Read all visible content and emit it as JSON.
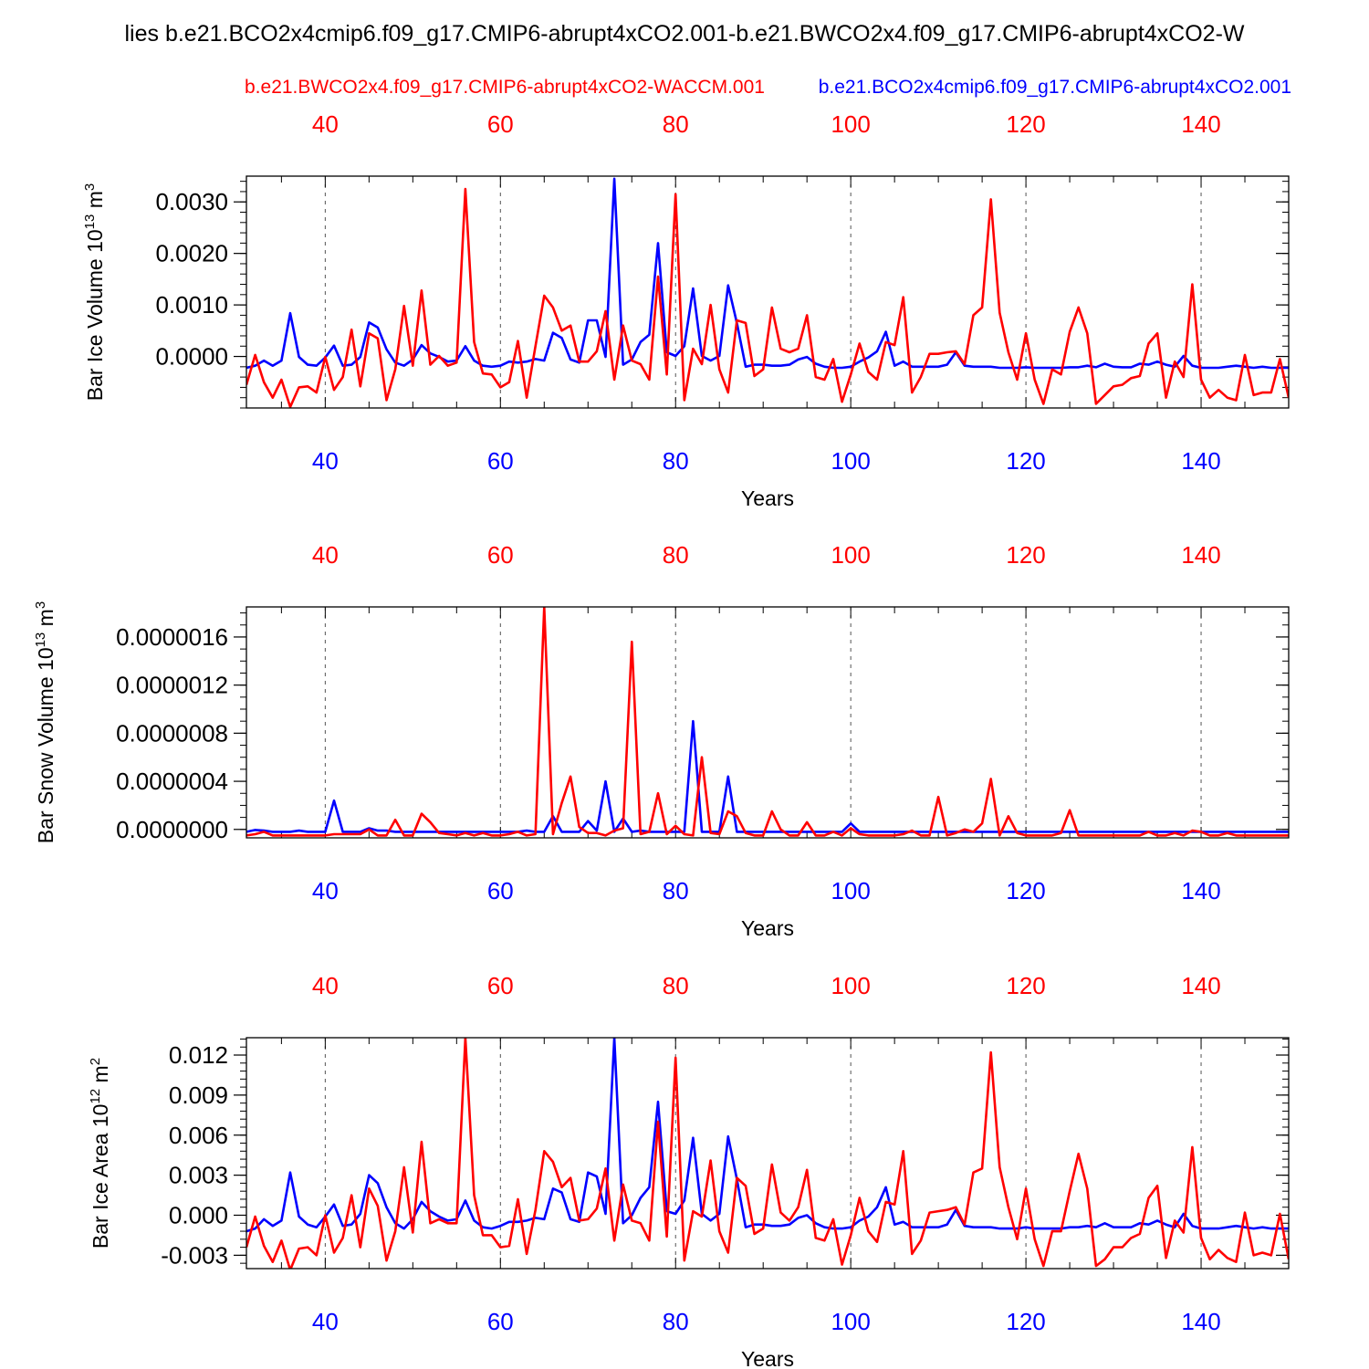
{
  "title": "lies b.e21.BCO2x4cmip6.f09_g17.CMIP6-abrupt4xCO2.001-b.e21.BWCO2x4.f09_g17.CMIP6-abrupt4xCO2-W",
  "legend": {
    "red_label": "b.e21.BWCO2x4.f09_g17.CMIP6-abrupt4xCO2-WACCM.001",
    "blue_label": "b.e21.BCO2x4cmip6.f09_g17.CMIP6-abrupt4xCO2.001"
  },
  "colors": {
    "red": "#ff0000",
    "blue": "#0000ff",
    "axis": "#000000",
    "grid": "#555555"
  },
  "chart_data": [
    {
      "type": "line",
      "ylabel": "Bar Ice Volume 10^13 m^3",
      "xlabel": "Years",
      "xlim": [
        31,
        150
      ],
      "ylim": [
        -0.001,
        0.0035
      ],
      "yticks": [
        0.0,
        0.001,
        0.002,
        0.003
      ],
      "ytick_labels": [
        "0.0000",
        "0.0010",
        "0.0020",
        "0.0030"
      ],
      "minor_step": 0.0002,
      "xticks": [
        40,
        60,
        80,
        100,
        120,
        140
      ],
      "xtick_labels": [
        "40",
        "60",
        "80",
        "100",
        "120",
        "140"
      ],
      "grid": "x dashed",
      "series": [
        {
          "name": "b.e21.BCO2x4cmip6.f09_g17.CMIP6-abrupt4xCO2.001",
          "color": "blue",
          "x_start": 31,
          "values": [
            -0.00022,
            -0.00018,
            -8e-05,
            -0.00018,
            -8e-05,
            0.00084,
            -1e-05,
            -0.00016,
            -0.00018,
            -2e-05,
            0.00021,
            -0.00018,
            -0.00016,
            -1e-05,
            0.00066,
            0.00056,
            0.00014,
            -0.00012,
            -0.00018,
            -6e-05,
            0.00022,
            6e-05,
            -1e-05,
            -0.0001,
            -8e-05,
            0.0002,
            -8e-05,
            -0.00018,
            -0.0002,
            -0.00018,
            -0.0001,
            -0.00012,
            -0.0001,
            -5e-05,
            -8e-05,
            0.00046,
            0.00036,
            -6e-05,
            -0.00012,
            0.0007,
            0.0007,
            -1e-05,
            0.00345,
            -0.00016,
            -6e-05,
            0.00028,
            0.00042,
            0.0022,
            8e-05,
            1e-05,
            0.0002,
            0.00132,
            1e-05,
            -8e-05,
            1e-05,
            0.00138,
            0.00065,
            -0.0002,
            -0.00016,
            -0.00016,
            -0.00018,
            -0.00018,
            -0.00016,
            -6e-05,
            -1e-05,
            -0.00014,
            -0.0002,
            -0.00022,
            -0.00022,
            -0.0002,
            -0.0001,
            -2e-05,
            0.0001,
            0.00048,
            -0.00018,
            -0.0001,
            -0.0002,
            -0.0002,
            -0.0002,
            -0.0002,
            -0.00016,
            8e-05,
            -0.00018,
            -0.0002,
            -0.0002,
            -0.0002,
            -0.00022,
            -0.00022,
            -0.00022,
            -0.00021,
            -0.00022,
            -0.00022,
            -0.00022,
            -0.00022,
            -0.00021,
            -0.00021,
            -0.00018,
            -0.00021,
            -0.00014,
            -0.0002,
            -0.00021,
            -0.00021,
            -0.00014,
            -0.00016,
            -0.0001,
            -0.00016,
            -0.0002,
            1e-05,
            -0.00018,
            -0.00022,
            -0.00022,
            -0.00022,
            -0.0002,
            -0.00018,
            -0.0002,
            -0.00022,
            -0.0002,
            -0.00022,
            -0.00022,
            -0.00022
          ]
        },
        {
          "name": "b.e21.BWCO2x4.f09_g17.CMIP6-abrupt4xCO2-WACCM.001",
          "color": "red",
          "x_start": 31,
          "values": [
            -0.00055,
            3e-05,
            -0.0005,
            -0.0008,
            -0.00045,
            -0.00098,
            -0.0006,
            -0.00058,
            -0.0007,
            -1e-05,
            -0.00065,
            -0.0004,
            0.00052,
            -0.00058,
            0.00045,
            0.00035,
            -0.00085,
            -0.00025,
            0.00098,
            -0.00018,
            0.00128,
            -0.00016,
            1e-05,
            -0.00018,
            -0.00012,
            0.00325,
            0.00028,
            -0.00033,
            -0.00035,
            -0.0006,
            -0.0005,
            0.0003,
            -0.0008,
            0.0002,
            0.00118,
            0.00095,
            0.0005,
            0.0006,
            -0.0001,
            -0.0001,
            0.0001,
            0.00088,
            -0.00045,
            0.0006,
            -8e-05,
            -0.00015,
            -0.00045,
            0.00155,
            -0.00035,
            0.00315,
            -0.00085,
            0.00015,
            -0.00015,
            0.001,
            -0.00025,
            -0.0007,
            0.0007,
            0.00065,
            -0.00038,
            -0.00025,
            0.00095,
            0.00015,
            8e-05,
            0.00015,
            0.0008,
            -0.0004,
            -0.00045,
            -5e-05,
            -0.00088,
            -0.00035,
            0.00025,
            -0.0003,
            -0.00045,
            0.00028,
            0.00022,
            0.00115,
            -0.0007,
            -0.0004,
            5e-05,
            5e-05,
            8e-05,
            0.0001,
            -0.00015,
            0.0008,
            0.00095,
            0.00305,
            0.00085,
            8e-05,
            -0.00045,
            0.00045,
            -0.00045,
            -0.00092,
            -0.00025,
            -0.00035,
            0.00048,
            0.00095,
            0.00045,
            -0.00092,
            -0.00075,
            -0.00058,
            -0.00055,
            -0.00042,
            -0.00038,
            0.00025,
            0.00045,
            -0.0008,
            -0.0001,
            -0.0004,
            0.0014,
            -0.00045,
            -0.0008,
            -0.00065,
            -0.0008,
            -0.00085,
            3e-05,
            -0.00075,
            -0.0007,
            -0.0007,
            -5e-05,
            -0.0008
          ]
        }
      ]
    },
    {
      "type": "line",
      "ylabel": "Bar Snow Volume 10^13 m^3",
      "xlabel": "Years",
      "xlim": [
        31,
        150
      ],
      "ylim": [
        -7e-08,
        1.85e-06
      ],
      "yticks": [
        0.0,
        4e-07,
        8e-07,
        1.2e-06,
        1.6e-06
      ],
      "ytick_labels": [
        "0.0000000",
        "0.0000004",
        "0.0000008",
        "0.0000012",
        "0.0000016"
      ],
      "minor_step": 1e-07,
      "xticks": [
        40,
        60,
        80,
        100,
        120,
        140
      ],
      "xtick_labels": [
        "40",
        "60",
        "80",
        "100",
        "120",
        "140"
      ],
      "grid": "x dashed",
      "series": [
        {
          "name": "b.e21.BCO2x4cmip6.f09_g17.CMIP6-abrupt4xCO2.001",
          "color": "blue",
          "x_start": 31,
          "values": [
            -2e-08,
            -5e-09,
            -1e-08,
            -2e-08,
            -2e-08,
            -2e-08,
            -1e-08,
            -2e-08,
            -2e-08,
            -2e-08,
            2.4e-07,
            -2e-08,
            -2e-08,
            -2e-08,
            1e-08,
            -1e-08,
            -1e-08,
            -2e-08,
            -2e-08,
            -2e-08,
            -2e-08,
            -2e-08,
            -2e-08,
            -2e-08,
            -2e-08,
            -2e-08,
            -2e-08,
            -2e-08,
            -2e-08,
            -2e-08,
            -2e-08,
            -2e-08,
            -1e-08,
            -2e-08,
            -2e-08,
            1.1e-07,
            -2e-08,
            -2e-08,
            -2e-08,
            7e-08,
            -1e-08,
            4e-07,
            -2e-08,
            9e-08,
            -2e-08,
            -1e-08,
            -2e-08,
            -2e-08,
            -2e-08,
            -2e-08,
            -2e-08,
            9e-07,
            -2e-08,
            -2e-08,
            -2e-08,
            4.4e-07,
            -2e-08,
            -2e-08,
            -2e-08,
            -2e-08,
            -2e-08,
            -2e-08,
            -2e-08,
            -2e-08,
            -2e-08,
            -2e-08,
            -2e-08,
            -2e-08,
            -2e-08,
            5e-08,
            -2e-08,
            -2e-08,
            -2e-08,
            -2e-08,
            -2e-08,
            -2e-08,
            -2e-08,
            -2e-08,
            -2e-08,
            -2e-08,
            -2e-08,
            -2e-08,
            -2e-08,
            -2e-08,
            -2e-08,
            -2e-08,
            -2e-08,
            -2e-08,
            -2e-08,
            -2e-08,
            -2e-08,
            -2e-08,
            -2e-08,
            -2e-08,
            -2e-08,
            -2e-08,
            -2e-08,
            -2e-08,
            -2e-08,
            -2e-08,
            -2e-08,
            -2e-08,
            -2e-08,
            -2e-08,
            -2e-08,
            -2e-08,
            -2e-08,
            -2e-08,
            -2e-08,
            -2e-08,
            -2e-08,
            -2e-08,
            -2e-08,
            -2e-08,
            -2e-08,
            -2e-08,
            -2e-08,
            -2e-08,
            -2e-08,
            -2e-08
          ]
        },
        {
          "name": "b.e21.BWCO2x4.f09_g17.CMIP6-abrupt4xCO2-WACCM.001",
          "color": "red",
          "x_start": 31,
          "values": [
            -5e-08,
            -4e-08,
            -2e-08,
            -5e-08,
            -5e-08,
            -5e-08,
            -5e-08,
            -5e-08,
            -5e-08,
            -5e-08,
            -4e-08,
            -4e-08,
            -4e-08,
            -4e-08,
            0.0,
            -5e-08,
            -5e-08,
            8e-08,
            -5e-08,
            -5e-08,
            1.3e-07,
            6e-08,
            -3e-08,
            -4e-08,
            -5e-08,
            -3e-08,
            -5e-08,
            -3e-08,
            -5e-08,
            -5e-08,
            -4e-08,
            -2e-08,
            -5e-08,
            -4e-08,
            1.85e-06,
            -4e-08,
            2.2e-07,
            4.4e-07,
            2e-08,
            -3e-08,
            -3e-08,
            -5e-08,
            -1e-08,
            1e-08,
            1.56e-06,
            -4e-08,
            -2e-08,
            3e-07,
            -4e-08,
            3e-08,
            -4e-08,
            -5e-08,
            6e-07,
            -3e-08,
            -4e-08,
            1.5e-07,
            1.1e-07,
            -3e-08,
            -5e-08,
            -5e-08,
            1.5e-07,
            0.0,
            -5e-08,
            -5e-08,
            6e-08,
            -5e-08,
            -5e-08,
            -2e-08,
            -5e-08,
            1e-08,
            -4e-08,
            -5e-08,
            -5e-08,
            -5e-08,
            -5e-08,
            -4e-08,
            -1e-08,
            -5e-08,
            -5e-08,
            2.7e-07,
            -5e-08,
            -3e-08,
            0.0,
            -2e-08,
            5e-08,
            4.2e-07,
            -5e-08,
            1.1e-07,
            -3e-08,
            -5e-08,
            -5e-08,
            -5e-08,
            -5e-08,
            -3e-08,
            1.6e-07,
            -5e-08,
            -5e-08,
            -5e-08,
            -5e-08,
            -5e-08,
            -5e-08,
            -5e-08,
            -5e-08,
            -2e-08,
            -5e-08,
            -5e-08,
            -3e-08,
            -5e-08,
            -1e-08,
            -2e-08,
            -5e-08,
            -5e-08,
            -3e-08,
            -5e-08,
            -5e-08,
            -5e-08,
            -5e-08,
            -5e-08,
            -5e-08,
            -5e-08
          ]
        }
      ]
    },
    {
      "type": "line",
      "ylabel": "Bar Ice Area 10^12 m^2",
      "xlabel": "Years",
      "xlim": [
        31,
        150
      ],
      "ylim": [
        -0.004,
        0.0133
      ],
      "yticks": [
        -0.003,
        0.0,
        0.003,
        0.006,
        0.009,
        0.012
      ],
      "ytick_labels": [
        "-0.003",
        "0.000",
        "0.003",
        "0.006",
        "0.009",
        "0.012"
      ],
      "minor_step": 0.0006,
      "xticks": [
        40,
        60,
        80,
        100,
        120,
        140
      ],
      "xtick_labels": [
        "40",
        "60",
        "80",
        "100",
        "120",
        "140"
      ],
      "grid": "x dashed",
      "series": [
        {
          "name": "b.e21.BCO2x4cmip6.f09_g17.CMIP6-abrupt4xCO2.001",
          "color": "blue",
          "x_start": 31,
          "values": [
            -0.0012,
            -0.001,
            -0.0003,
            -0.0008,
            -0.0004,
            0.0032,
            -0.0001,
            -0.0007,
            -0.0009,
            -0.0001,
            0.0008,
            -0.0008,
            -0.0007,
            0.0001,
            0.003,
            0.0024,
            0.0006,
            -0.0006,
            -0.001,
            -0.0003,
            0.001,
            0.0003,
            -0.0001,
            -0.0004,
            -0.0003,
            0.0011,
            -0.0004,
            -0.0009,
            -0.001,
            -0.0008,
            -0.0005,
            -0.0005,
            -0.0004,
            -0.0002,
            -0.0003,
            0.002,
            0.0017,
            -0.0003,
            -0.0005,
            0.0032,
            0.0029,
            0.0001,
            0.0133,
            -0.0006,
            0.0,
            0.0013,
            0.0021,
            0.0085,
            0.0003,
            0.0001,
            0.0011,
            0.0058,
            0.0001,
            -0.0004,
            0.0001,
            0.0059,
            0.0027,
            -0.0009,
            -0.0007,
            -0.0007,
            -0.0008,
            -0.0008,
            -0.0007,
            -0.0002,
            0.0,
            -0.0006,
            -0.0009,
            -0.001,
            -0.001,
            -0.0009,
            -0.0004,
            -0.0001,
            0.0006,
            0.0021,
            -0.0007,
            -0.0005,
            -0.0009,
            -0.0009,
            -0.0009,
            -0.0009,
            -0.0007,
            0.0004,
            -0.0008,
            -0.0009,
            -0.0009,
            -0.0009,
            -0.001,
            -0.001,
            -0.001,
            -0.0009,
            -0.001,
            -0.001,
            -0.001,
            -0.001,
            -0.0009,
            -0.0009,
            -0.0008,
            -0.0009,
            -0.0006,
            -0.0009,
            -0.0009,
            -0.0009,
            -0.0006,
            -0.0007,
            -0.0004,
            -0.0007,
            -0.0009,
            0.0001,
            -0.0008,
            -0.001,
            -0.001,
            -0.001,
            -0.0009,
            -0.0008,
            -0.0009,
            -0.001,
            -0.0009,
            -0.001,
            -0.001,
            -0.001
          ]
        },
        {
          "name": "b.e21.BWCO2x4.f09_g17.CMIP6-abrupt4xCO2-WACCM.001",
          "color": "red",
          "x_start": 31,
          "values": [
            -0.0024,
            -0.0001,
            -0.0023,
            -0.0035,
            -0.0019,
            -0.0041,
            -0.0025,
            -0.0024,
            -0.003,
            0.0,
            -0.0028,
            -0.0017,
            0.0015,
            -0.0024,
            0.002,
            0.0007,
            -0.0034,
            -0.0012,
            0.0036,
            -0.0013,
            0.0055,
            -0.0006,
            -0.0003,
            -0.0006,
            -0.0006,
            0.0133,
            0.0015,
            -0.0015,
            -0.0015,
            -0.0024,
            -0.0023,
            0.0012,
            -0.0029,
            0.0004,
            0.0048,
            0.004,
            0.0021,
            0.0028,
            -0.0004,
            -0.0003,
            0.0005,
            0.0035,
            -0.0019,
            0.0023,
            -0.0004,
            -0.0006,
            -0.0019,
            0.007,
            -0.0016,
            0.0118,
            -0.0034,
            0.0003,
            -0.0001,
            0.0041,
            -0.0012,
            -0.0028,
            0.0028,
            0.0022,
            -0.0014,
            -0.001,
            0.0038,
            0.0002,
            -0.0004,
            0.0006,
            0.0034,
            -0.0017,
            -0.0019,
            -0.0003,
            -0.0037,
            -0.0015,
            0.0013,
            -0.0012,
            -0.002,
            0.001,
            0.0008,
            0.0048,
            -0.0029,
            -0.0019,
            0.0002,
            0.0003,
            0.0004,
            0.0006,
            -0.0007,
            0.0032,
            0.0035,
            0.0122,
            0.0036,
            0.0006,
            -0.0018,
            0.002,
            -0.0018,
            -0.0038,
            -0.0012,
            -0.0012,
            0.0018,
            0.0046,
            0.002,
            -0.0038,
            -0.0033,
            -0.0024,
            -0.0024,
            -0.0017,
            -0.0014,
            0.0013,
            0.0022,
            -0.0032,
            -0.0004,
            -0.0013,
            0.0051,
            -0.0017,
            -0.0033,
            -0.0026,
            -0.0032,
            -0.0035,
            0.0002,
            -0.003,
            -0.0028,
            -0.003,
            0.0001,
            -0.0033
          ]
        }
      ]
    }
  ]
}
